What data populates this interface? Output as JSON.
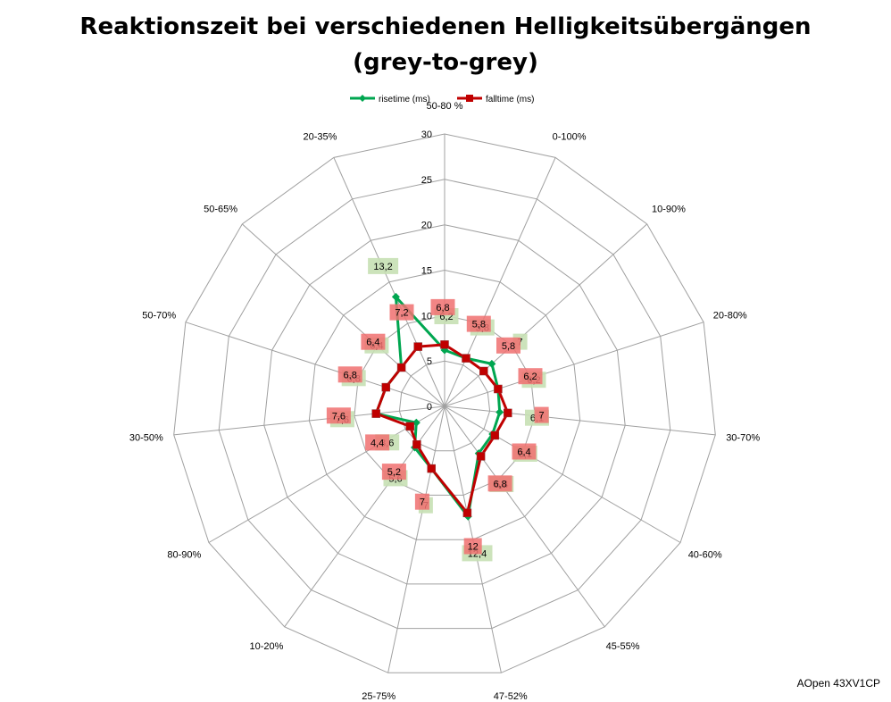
{
  "chart_data": {
    "type": "radar",
    "title": "Reaktionszeit bei verschiedenen Helligkeitsübergängen",
    "subtitle": "(grey-to-grey)",
    "categories": [
      "50-80 %",
      "0-100%",
      "10-90%",
      "20-80%",
      "30-70%",
      "40-60%",
      "45-55%",
      "47-52%",
      "25-75%",
      "10-20%",
      "80-90%",
      "30-50%",
      "50-70%",
      "50-65%",
      "20-35%"
    ],
    "rlim": [
      0,
      30
    ],
    "ticks": [
      "0",
      "5",
      "10",
      "15",
      "20",
      "25",
      "30"
    ],
    "grid": true,
    "legend_position": "top",
    "series": [
      {
        "name": "risetime (ms)",
        "color": "#00a650",
        "label_bg": "#c6e0b4",
        "values": [
          6.2,
          5.8,
          7,
          6.2,
          6.1,
          6.1,
          6.4,
          12.4,
          7,
          5.6,
          3.6,
          7.6,
          6.8,
          6.4,
          13.2
        ],
        "labels": [
          "6,2",
          "5,8",
          "7",
          "6,2",
          "6,1",
          "6,1",
          "6,4",
          "12,4",
          "7",
          "5,6",
          "3,6",
          "7,6",
          "6,8",
          "6,4",
          "13,2"
        ]
      },
      {
        "name": "falltime (ms)",
        "color": "#c00000",
        "label_bg": "#f07070",
        "values": [
          6.8,
          5.8,
          5.8,
          6.2,
          7,
          6.4,
          6.8,
          12,
          7,
          5.2,
          4.4,
          7.6,
          6.8,
          6.4,
          7.2
        ],
        "labels": [
          "6,8",
          "5,8",
          "5,8",
          "6,2",
          "7",
          "6,4",
          "6,8",
          "12",
          "7",
          "5,2",
          "4,4",
          "7,6",
          "6,8",
          "6,4",
          "7,2"
        ]
      }
    ],
    "annotation": "AOpen 43XV1CP"
  }
}
